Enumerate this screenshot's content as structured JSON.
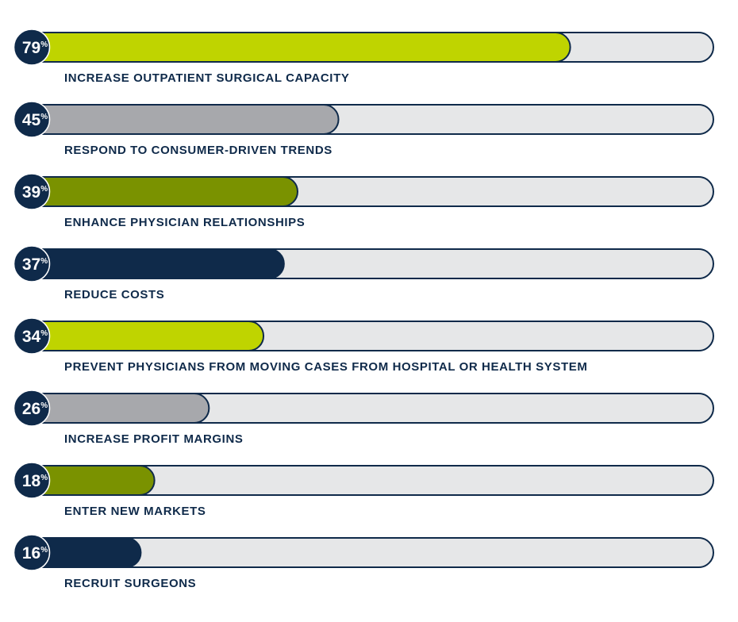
{
  "chart_data": {
    "type": "bar",
    "orientation": "horizontal",
    "xlim": [
      0,
      100
    ],
    "value_suffix": "%",
    "colors": {
      "track": "#e6e7e8",
      "outline": "#0f2a4a",
      "badge": "#0f2a4a",
      "label": "#0f2a4a",
      "lime": "#bfd400",
      "gray": "#a7a8ac",
      "olive": "#7a9200",
      "navy": "#0f2a4a"
    },
    "bars": [
      {
        "category": "INCREASE OUTPATIENT SURGICAL CAPACITY",
        "value": 79,
        "value_text": "79",
        "color": "#bfd400"
      },
      {
        "category": "RESPOND TO CONSUMER-DRIVEN TRENDS",
        "value": 45,
        "value_text": "45",
        "color": "#a7a8ac"
      },
      {
        "category": "ENHANCE PHYSICIAN RELATIONSHIPS",
        "value": 39,
        "value_text": "39",
        "color": "#7a9200"
      },
      {
        "category": "REDUCE COSTS",
        "value": 37,
        "value_text": "37",
        "color": "#0f2a4a"
      },
      {
        "category": "PREVENT PHYSICIANS FROM MOVING CASES FROM HOSPITAL OR HEALTH SYSTEM",
        "value": 34,
        "value_text": "34",
        "color": "#bfd400"
      },
      {
        "category": "INCREASE PROFIT MARGINS",
        "value": 26,
        "value_text": "26",
        "color": "#a7a8ac"
      },
      {
        "category": "ENTER NEW MARKETS",
        "value": 18,
        "value_text": "18",
        "color": "#7a9200"
      },
      {
        "category": "RECRUIT SURGEONS",
        "value": 16,
        "value_text": "16",
        "color": "#0f2a4a"
      }
    ]
  }
}
